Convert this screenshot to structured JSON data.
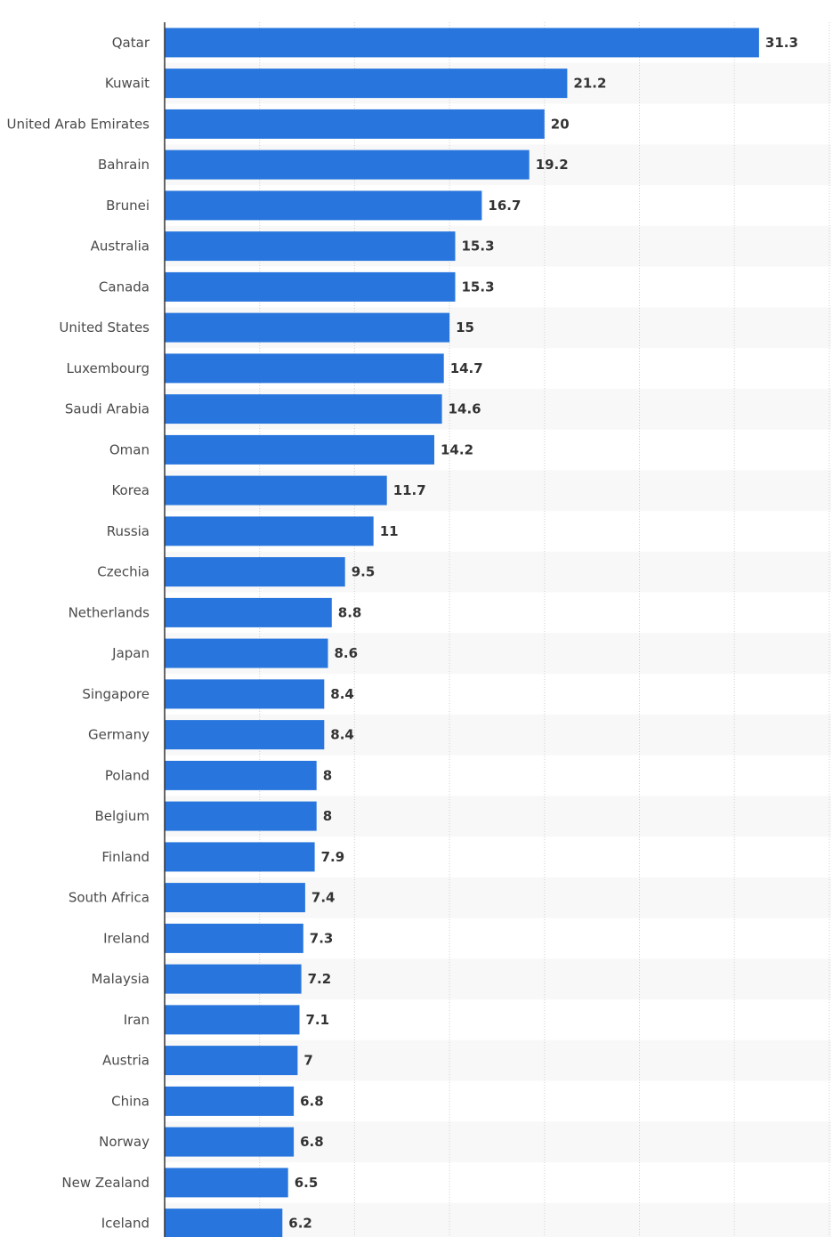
{
  "chart_data": {
    "type": "bar",
    "orientation": "horizontal",
    "title": "",
    "xlabel": "",
    "ylabel": "",
    "xlim": [
      0,
      35
    ],
    "grid": true,
    "categories": [
      "Qatar",
      "Kuwait",
      "United Arab Emirates",
      "Bahrain",
      "Brunei",
      "Australia",
      "Canada",
      "United States",
      "Luxembourg",
      "Saudi Arabia",
      "Oman",
      "Korea",
      "Russia",
      "Czechia",
      "Netherlands",
      "Japan",
      "Singapore",
      "Germany",
      "Poland",
      "Belgium",
      "Finland",
      "South Africa",
      "Ireland",
      "Malaysia",
      "Iran",
      "Austria",
      "China",
      "Norway",
      "New Zealand",
      "Iceland"
    ],
    "values": [
      31.3,
      21.2,
      20,
      19.2,
      16.7,
      15.3,
      15.3,
      15,
      14.7,
      14.6,
      14.2,
      11.7,
      11,
      9.5,
      8.8,
      8.6,
      8.4,
      8.4,
      8,
      8,
      7.9,
      7.4,
      7.3,
      7.2,
      7.1,
      7,
      6.8,
      6.8,
      6.5,
      6.2
    ],
    "bar_color": "#2876dd"
  }
}
